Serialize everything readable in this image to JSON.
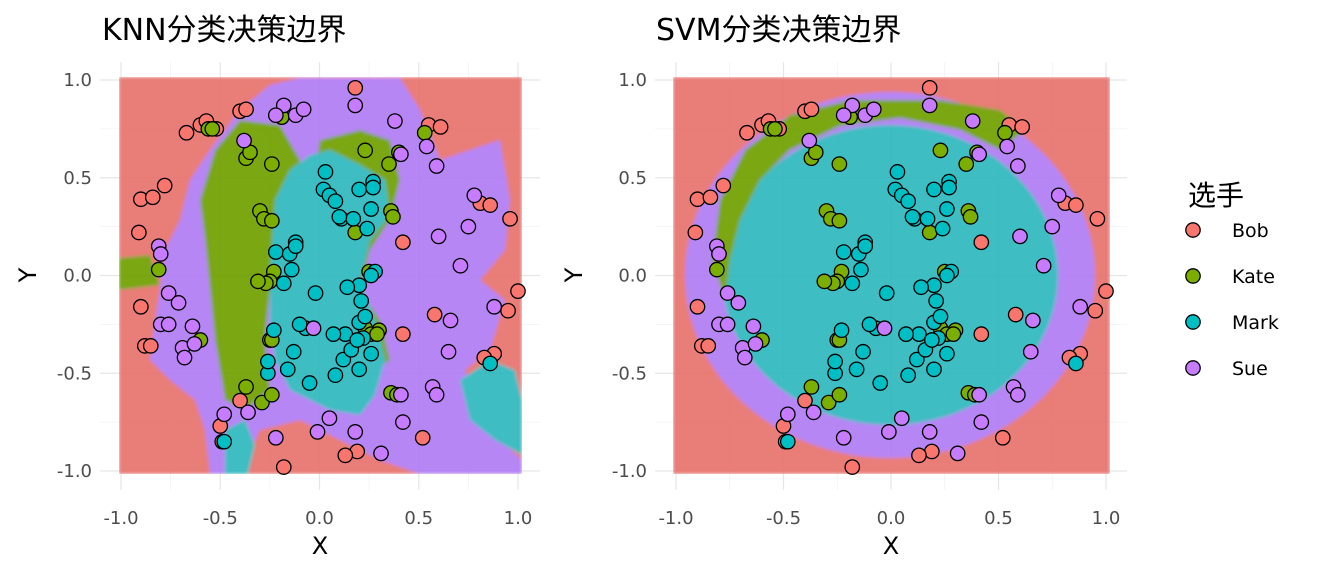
{
  "colors": {
    "Bob": "#F8766D",
    "Kate": "#7CAE00",
    "Mark": "#00BFC4",
    "Sue": "#C77CFF"
  },
  "legend": {
    "title": "选手",
    "items": [
      "Bob",
      "Kate",
      "Mark",
      "Sue"
    ]
  },
  "chart_data": [
    {
      "type": "scatter",
      "title": "KNN分类决策边界",
      "xlabel": "X",
      "ylabel": "Y",
      "xlim": [
        -1,
        1
      ],
      "ylim": [
        -1,
        1
      ],
      "xticks": [
        "-1.0",
        "-0.5",
        "0.0",
        "0.5",
        "1.0"
      ],
      "yticks": [
        "-1.0",
        "-0.5",
        "0.0",
        "0.5",
        "1.0"
      ],
      "background": "knn decision regions",
      "grid": true
    },
    {
      "type": "scatter",
      "title": "SVM分类决策边界",
      "xlabel": "X",
      "ylabel": "Y",
      "xlim": [
        -1,
        1
      ],
      "ylim": [
        -1,
        1
      ],
      "xticks": [
        "-1.0",
        "-0.5",
        "0.0",
        "0.5",
        "1.0"
      ],
      "yticks": [
        "-1.0",
        "-0.5",
        "0.0",
        "0.5",
        "1.0"
      ],
      "background": "svm decision regions",
      "grid": true
    }
  ],
  "points": [
    [
      "Bob",
      -0.9,
      0.39
    ],
    [
      "Bob",
      -0.84,
      0.4
    ],
    [
      "Bob",
      -0.78,
      0.46
    ],
    [
      "Bob",
      -0.91,
      0.22
    ],
    [
      "Bob",
      -0.9,
      -0.16
    ],
    [
      "Bob",
      -0.88,
      -0.36
    ],
    [
      "Bob",
      -0.85,
      -0.36
    ],
    [
      "Bob",
      -0.67,
      0.73
    ],
    [
      "Bob",
      -0.6,
      0.77
    ],
    [
      "Bob",
      -0.57,
      0.79
    ],
    [
      "Bob",
      -0.52,
      0.75
    ],
    [
      "Bob",
      -0.4,
      0.84
    ],
    [
      "Bob",
      -0.37,
      0.85
    ],
    [
      "Bob",
      0.18,
      0.96
    ],
    [
      "Bob",
      0.55,
      0.77
    ],
    [
      "Bob",
      0.61,
      0.76
    ],
    [
      "Bob",
      0.81,
      0.37
    ],
    [
      "Bob",
      0.86,
      0.36
    ],
    [
      "Bob",
      0.96,
      0.29
    ],
    [
      "Bob",
      1.0,
      -0.08
    ],
    [
      "Bob",
      0.95,
      -0.18
    ],
    [
      "Bob",
      0.88,
      -0.4
    ],
    [
      "Bob",
      0.83,
      -0.42
    ],
    [
      "Bob",
      0.42,
      0.17
    ],
    [
      "Bob",
      0.42,
      -0.3
    ],
    [
      "Bob",
      0.52,
      -0.83
    ],
    [
      "Bob",
      0.19,
      -0.9
    ],
    [
      "Bob",
      0.13,
      -0.92
    ],
    [
      "Bob",
      -0.18,
      -0.98
    ],
    [
      "Bob",
      -0.49,
      -0.85
    ],
    [
      "Bob",
      -0.5,
      -0.77
    ],
    [
      "Bob",
      -0.4,
      -0.64
    ],
    [
      "Bob",
      0.58,
      -0.2
    ],
    [
      "Kate",
      -0.56,
      0.75
    ],
    [
      "Kate",
      -0.54,
      0.75
    ],
    [
      "Kate",
      -0.37,
      0.6
    ],
    [
      "Kate",
      -0.35,
      0.63
    ],
    [
      "Kate",
      -0.3,
      0.33
    ],
    [
      "Kate",
      -0.28,
      0.29
    ],
    [
      "Kate",
      -0.24,
      0.57
    ],
    [
      "Kate",
      -0.19,
      0.81
    ],
    [
      "Kate",
      -0.81,
      0.03
    ],
    [
      "Kate",
      -0.6,
      -0.33
    ],
    [
      "Kate",
      -0.24,
      0.28
    ],
    [
      "Kate",
      -0.23,
      0.02
    ],
    [
      "Kate",
      -0.25,
      -0.03
    ],
    [
      "Kate",
      -0.27,
      -0.04
    ],
    [
      "Kate",
      -0.31,
      -0.03
    ],
    [
      "Kate",
      -0.25,
      -0.33
    ],
    [
      "Kate",
      -0.24,
      -0.33
    ],
    [
      "Kate",
      -0.37,
      -0.57
    ],
    [
      "Kate",
      -0.29,
      -0.65
    ],
    [
      "Kate",
      -0.24,
      -0.61
    ],
    [
      "Kate",
      0.23,
      0.64
    ],
    [
      "Kate",
      0.35,
      0.57
    ],
    [
      "Kate",
      0.4,
      0.63
    ],
    [
      "Kate",
      0.53,
      0.73
    ],
    [
      "Kate",
      0.36,
      0.33
    ],
    [
      "Kate",
      0.37,
      0.3
    ],
    [
      "Kate",
      0.18,
      0.22
    ],
    [
      "Kate",
      0.25,
      0.02
    ],
    [
      "Kate",
      0.23,
      -0.27
    ],
    [
      "Kate",
      0.3,
      -0.28
    ],
    [
      "Kate",
      0.26,
      -0.3
    ],
    [
      "Kate",
      0.29,
      -0.3
    ],
    [
      "Kate",
      0.36,
      -0.6
    ],
    [
      "Kate",
      0.39,
      -0.61
    ],
    [
      "Mark",
      -0.48,
      -0.85
    ],
    [
      "Mark",
      -0.26,
      -0.5
    ],
    [
      "Mark",
      -0.26,
      -0.44
    ],
    [
      "Mark",
      -0.23,
      -0.28
    ],
    [
      "Mark",
      -0.22,
      0.12
    ],
    [
      "Mark",
      -0.15,
      0.11
    ],
    [
      "Mark",
      -0.12,
      0.17
    ],
    [
      "Mark",
      -0.12,
      0.15
    ],
    [
      "Mark",
      -0.14,
      0.03
    ],
    [
      "Mark",
      -0.18,
      -0.04
    ],
    [
      "Mark",
      -0.13,
      -0.39
    ],
    [
      "Mark",
      -0.16,
      -0.48
    ],
    [
      "Mark",
      -0.05,
      -0.55
    ],
    [
      "Mark",
      -0.07,
      -0.27
    ],
    [
      "Mark",
      -0.02,
      -0.09
    ],
    [
      "Mark",
      0.02,
      0.44
    ],
    [
      "Mark",
      0.05,
      0.41
    ],
    [
      "Mark",
      0.08,
      0.38
    ],
    [
      "Mark",
      0.03,
      0.53
    ],
    [
      "Mark",
      0.11,
      0.29
    ],
    [
      "Mark",
      0.17,
      0.29
    ],
    [
      "Mark",
      0.26,
      0.34
    ],
    [
      "Mark",
      0.2,
      0.44
    ],
    [
      "Mark",
      0.27,
      0.48
    ],
    [
      "Mark",
      0.27,
      0.45
    ],
    [
      "Mark",
      0.2,
      -0.05
    ],
    [
      "Mark",
      0.21,
      -0.13
    ],
    [
      "Mark",
      0.13,
      -0.3
    ],
    [
      "Mark",
      0.22,
      -0.32
    ],
    [
      "Mark",
      0.2,
      -0.24
    ],
    [
      "Mark",
      0.23,
      -0.21
    ],
    [
      "Mark",
      0.14,
      -0.06
    ],
    [
      "Mark",
      0.24,
      0.24
    ],
    [
      "Mark",
      0.28,
      0.02
    ],
    [
      "Mark",
      0.26,
      0.0
    ],
    [
      "Mark",
      0.12,
      -0.43
    ],
    [
      "Mark",
      0.08,
      -0.51
    ],
    [
      "Mark",
      0.16,
      -0.38
    ],
    [
      "Mark",
      0.19,
      -0.33
    ],
    [
      "Mark",
      0.26,
      -0.4
    ],
    [
      "Mark",
      0.86,
      -0.45
    ],
    [
      "Mark",
      0.1,
      0.3
    ],
    [
      "Mark",
      0.2,
      -0.48
    ],
    [
      "Mark",
      0.07,
      -0.3
    ],
    [
      "Mark",
      -0.1,
      -0.25
    ],
    [
      "Sue",
      -0.81,
      0.15
    ],
    [
      "Sue",
      -0.8,
      0.11
    ],
    [
      "Sue",
      -0.76,
      -0.09
    ],
    [
      "Sue",
      -0.71,
      -0.14
    ],
    [
      "Sue",
      -0.8,
      -0.25
    ],
    [
      "Sue",
      -0.76,
      -0.25
    ],
    [
      "Sue",
      -0.69,
      -0.37
    ],
    [
      "Sue",
      -0.68,
      -0.42
    ],
    [
      "Sue",
      -0.64,
      -0.26
    ],
    [
      "Sue",
      -0.63,
      -0.35
    ],
    [
      "Sue",
      -0.38,
      0.69
    ],
    [
      "Sue",
      -0.18,
      0.87
    ],
    [
      "Sue",
      -0.12,
      0.82
    ],
    [
      "Sue",
      -0.08,
      0.85
    ],
    [
      "Sue",
      0.18,
      0.87
    ],
    [
      "Sue",
      0.38,
      0.79
    ],
    [
      "Sue",
      0.41,
      0.62
    ],
    [
      "Sue",
      0.54,
      0.66
    ],
    [
      "Sue",
      0.59,
      0.56
    ],
    [
      "Sue",
      0.6,
      0.2
    ],
    [
      "Sue",
      0.75,
      0.25
    ],
    [
      "Sue",
      0.78,
      0.41
    ],
    [
      "Sue",
      0.71,
      0.05
    ],
    [
      "Sue",
      0.66,
      -0.23
    ],
    [
      "Sue",
      0.65,
      -0.39
    ],
    [
      "Sue",
      0.57,
      -0.57
    ],
    [
      "Sue",
      0.59,
      -0.61
    ],
    [
      "Sue",
      0.88,
      -0.16
    ],
    [
      "Sue",
      0.41,
      -0.61
    ],
    [
      "Sue",
      0.42,
      -0.75
    ],
    [
      "Sue",
      0.31,
      -0.91
    ],
    [
      "Sue",
      0.18,
      -0.8
    ],
    [
      "Sue",
      0.05,
      -0.73
    ],
    [
      "Sue",
      -0.01,
      -0.8
    ],
    [
      "Sue",
      -0.22,
      -0.83
    ],
    [
      "Sue",
      -0.48,
      -0.71
    ],
    [
      "Sue",
      -0.36,
      -0.7
    ],
    [
      "Sue",
      -0.03,
      -0.27
    ],
    [
      "Sue",
      -0.22,
      0.82
    ]
  ]
}
